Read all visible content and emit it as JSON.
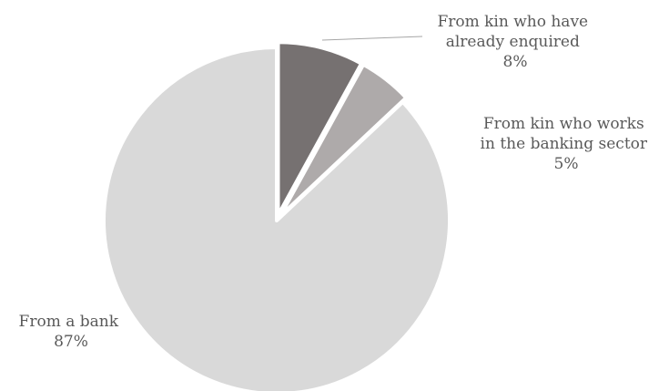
{
  "chart_data": {
    "type": "pie",
    "title": "",
    "slices": [
      {
        "label_lines": [
          "From kin who have",
          "already enquired"
        ],
        "value": 8,
        "value_text": "8%",
        "color": "#767171",
        "exploded": true
      },
      {
        "label_lines": [
          "From kin who works",
          "in the banking sector"
        ],
        "value": 5,
        "value_text": "5%",
        "color": "#aeaaaa",
        "exploded": true
      },
      {
        "label_lines": [
          "From a bank"
        ],
        "value": 87,
        "value_text": "87%",
        "color": "#d9d9d9",
        "exploded": false
      }
    ],
    "start_angle": "12 o'clock",
    "direction": "clockwise",
    "legend": "none",
    "leader_line_color": "#a6a6a6"
  }
}
